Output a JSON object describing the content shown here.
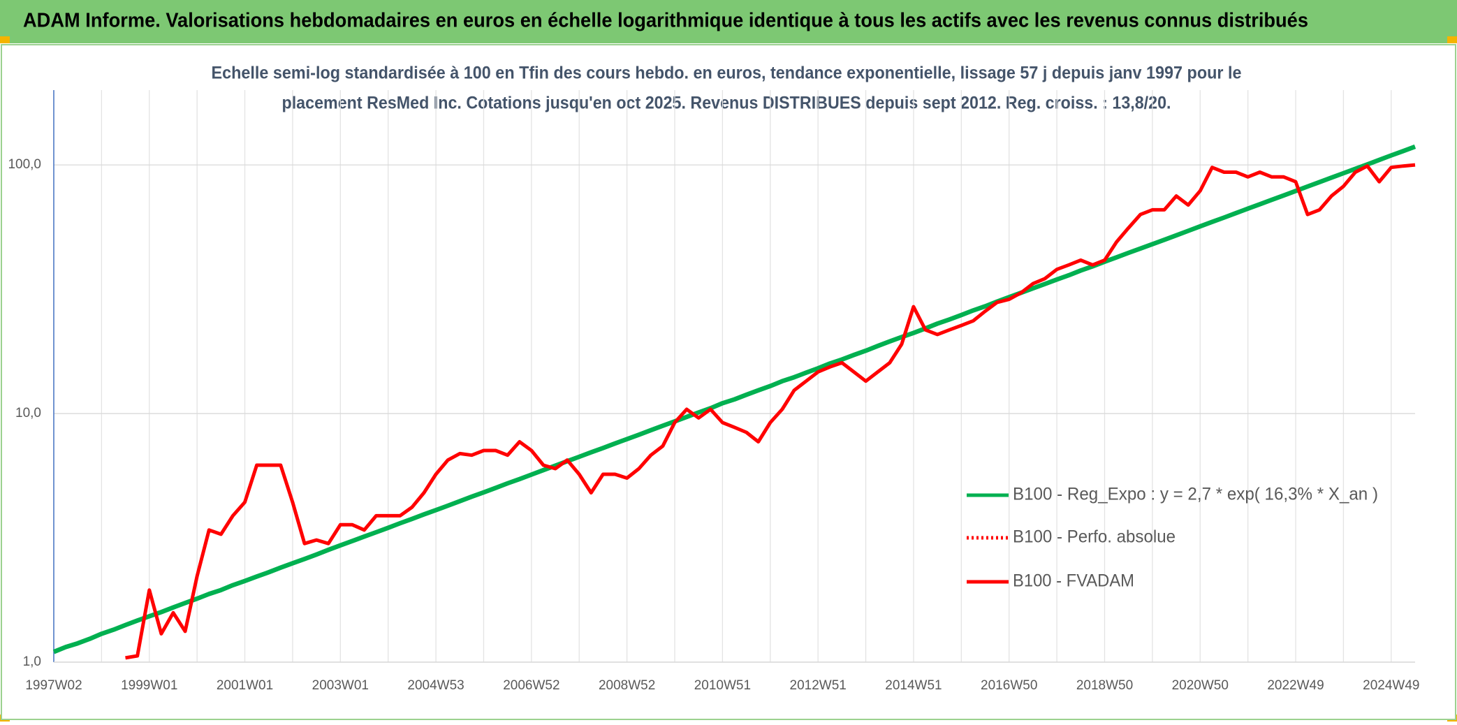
{
  "chart_data": {
    "type": "line",
    "title": "ADAM Informe. Valorisations hebdomadaires en euros en échelle logarithmique identique à tous les actifs avec les revenus connus distribués",
    "subtitle": [
      "Echelle semi-log standardisée à 100 en Tfin des cours hebdo. en euros, tendance exponentielle, lissage 57 j depuis janv 1997 pour le",
      "placement ResMed Inc. Cotations jusqu'en oct 2025. Revenus DISTRIBUES depuis sept 2012. Reg. croiss. : 13,8/20."
    ],
    "log_scale": true,
    "grid": true,
    "legend": "right",
    "ylim": [
      1,
      200
    ],
    "yticks": [
      {
        "value": 1,
        "label": "1,0"
      },
      {
        "value": 10,
        "label": "10,0"
      },
      {
        "value": 100,
        "label": "100,0"
      }
    ],
    "categories": [
      "1997W02",
      null,
      null,
      null,
      null,
      null,
      null,
      null,
      "1999W01",
      null,
      null,
      null,
      null,
      null,
      null,
      null,
      "2001W01",
      null,
      null,
      null,
      null,
      null,
      null,
      null,
      "2003W01",
      null,
      null,
      null,
      null,
      null,
      null,
      null,
      "2004W53",
      null,
      null,
      null,
      null,
      null,
      null,
      null,
      "2006W52",
      null,
      null,
      null,
      null,
      null,
      null,
      null,
      "2008W52",
      null,
      null,
      null,
      null,
      null,
      null,
      null,
      "2010W51",
      null,
      null,
      null,
      null,
      null,
      null,
      null,
      "2012W51",
      null,
      null,
      null,
      null,
      null,
      null,
      null,
      "2014W51",
      null,
      null,
      null,
      null,
      null,
      null,
      null,
      "2016W50",
      null,
      null,
      null,
      null,
      null,
      null,
      null,
      "2018W50",
      null,
      null,
      null,
      null,
      null,
      null,
      null,
      "2020W50",
      null,
      null,
      null,
      null,
      null,
      null,
      null,
      "2022W49",
      null,
      null,
      null,
      null,
      null,
      null,
      null,
      "2024W49",
      null,
      null
    ],
    "series": [
      {
        "name": "B100 - Reg_Expo : y = 2,7 * exp( 16,3% *  X_an )",
        "color": "#00b050",
        "line_style": "solid",
        "values": [
          1.1,
          1.15,
          1.19,
          1.24,
          1.3,
          1.35,
          1.41,
          1.47,
          1.53,
          1.59,
          1.66,
          1.73,
          1.8,
          1.88,
          1.95,
          2.04,
          2.12,
          2.21,
          2.3,
          2.4,
          2.5,
          2.6,
          2.71,
          2.83,
          2.95,
          3.07,
          3.2,
          3.33,
          3.47,
          3.62,
          3.77,
          3.93,
          4.09,
          4.26,
          4.44,
          4.63,
          4.82,
          5.02,
          5.24,
          5.45,
          5.68,
          5.92,
          6.17,
          6.43,
          6.7,
          6.98,
          7.27,
          7.58,
          7.89,
          8.22,
          8.57,
          8.93,
          9.3,
          9.69,
          10.1,
          10.5,
          11,
          11.4,
          11.9,
          12.4,
          12.9,
          13.5,
          14,
          14.6,
          15.2,
          15.9,
          16.5,
          17.2,
          17.9,
          18.7,
          19.5,
          20.3,
          21.1,
          22,
          23,
          23.9,
          24.9,
          26,
          27,
          28.2,
          29.4,
          30.6,
          31.9,
          33.2,
          34.6,
          36,
          37.6,
          39.1,
          40.8,
          42.5,
          44.3,
          46.1,
          48,
          50,
          52.1,
          54.3,
          56.6,
          59,
          61.4,
          64,
          66.7,
          69.5,
          72.4,
          75.4,
          78.6,
          81.9,
          85.3,
          88.9,
          92.6,
          96.5,
          100.5,
          104.8,
          109.2,
          113.7,
          118.5
        ]
      },
      {
        "name": "B100 - Perfo. absolue",
        "color": "#ff0000",
        "line_style": "dotted",
        "values": [
          null,
          null,
          null,
          null,
          null,
          null,
          1.04,
          1.06,
          1.95,
          1.3,
          1.58,
          1.33,
          2.22,
          3.4,
          3.27,
          3.88,
          4.4,
          6.2,
          6.2,
          6.2,
          4.4,
          3.0,
          3.1,
          3.0,
          3.57,
          3.57,
          3.4,
          3.88,
          3.88,
          3.88,
          4.2,
          4.8,
          5.7,
          6.5,
          6.9,
          6.8,
          7.1,
          7.1,
          6.8,
          7.7,
          7.1,
          6.2,
          6.0,
          6.5,
          5.7,
          4.8,
          5.7,
          5.7,
          5.5,
          6.0,
          6.8,
          7.4,
          9.2,
          10.4,
          9.6,
          10.4,
          9.2,
          8.8,
          8.4,
          7.7,
          9.2,
          10.4,
          12.4,
          13.5,
          14.7,
          15.4,
          16.0,
          14.7,
          13.5,
          14.7,
          16.0,
          19.0,
          26.9,
          21.7,
          20.8,
          21.7,
          22.6,
          23.6,
          25.8,
          28.0,
          28.8,
          30.6,
          33.3,
          34.9,
          38.0,
          39.6,
          41.4,
          39.6,
          41.4,
          49.0,
          55.8,
          63.2,
          66.0,
          66.0,
          75.0,
          69.0,
          78.7,
          97.7,
          93.5,
          93.5,
          89.5,
          93.5,
          89.5,
          89.5,
          85.6,
          63.2,
          66.0,
          75.0,
          82.0,
          93.5,
          99,
          85.6,
          97.7,
          99,
          100
        ]
      },
      {
        "name": "B100 - FVADAM",
        "color": "#ff0000",
        "line_style": "solid",
        "values": [
          null,
          null,
          null,
          null,
          null,
          null,
          1.04,
          1.06,
          1.95,
          1.3,
          1.58,
          1.33,
          2.22,
          3.4,
          3.27,
          3.88,
          4.4,
          6.2,
          6.2,
          6.2,
          4.4,
          3.0,
          3.1,
          3.0,
          3.57,
          3.57,
          3.4,
          3.88,
          3.88,
          3.88,
          4.2,
          4.8,
          5.7,
          6.5,
          6.9,
          6.8,
          7.1,
          7.1,
          6.8,
          7.7,
          7.1,
          6.2,
          6.0,
          6.5,
          5.7,
          4.8,
          5.7,
          5.7,
          5.5,
          6.0,
          6.8,
          7.4,
          9.2,
          10.4,
          9.6,
          10.4,
          9.2,
          8.8,
          8.4,
          7.7,
          9.2,
          10.4,
          12.4,
          13.5,
          14.7,
          15.4,
          16.0,
          14.7,
          13.5,
          14.7,
          16.0,
          19.0,
          26.9,
          21.7,
          20.8,
          21.7,
          22.6,
          23.6,
          25.8,
          28.0,
          28.8,
          30.6,
          33.3,
          34.9,
          38.0,
          39.6,
          41.4,
          39.6,
          41.4,
          49.0,
          55.8,
          63.2,
          66.0,
          66.0,
          75.0,
          69.0,
          78.7,
          97.7,
          93.5,
          93.5,
          89.5,
          93.5,
          89.5,
          89.5,
          85.6,
          63.2,
          66.0,
          75.0,
          82.0,
          93.5,
          99,
          85.6,
          97.7,
          99,
          100
        ]
      }
    ]
  }
}
